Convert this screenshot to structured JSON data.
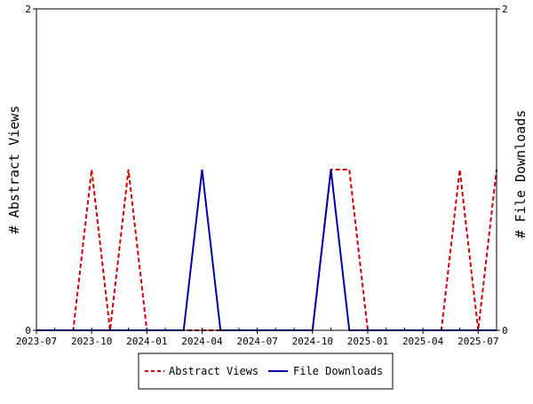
{
  "chart_data": {
    "type": "line",
    "title": "",
    "xlabel": "",
    "ylabel": "# Abstract Views",
    "y2label": "# File Downloads",
    "x": [
      "2023-07",
      "2023-08",
      "2023-09",
      "2023-10",
      "2023-11",
      "2023-12",
      "2024-01",
      "2024-02",
      "2024-03",
      "2024-04",
      "2024-05",
      "2024-06",
      "2024-07",
      "2024-08",
      "2024-09",
      "2024-10",
      "2024-11",
      "2024-12",
      "2025-01",
      "2025-02",
      "2025-03",
      "2025-04",
      "2025-05",
      "2025-06",
      "2025-07",
      "2025-08"
    ],
    "x_tick_labels": [
      "2023-07",
      "2023-10",
      "2024-01",
      "2024-04",
      "2024-07",
      "2024-10",
      "2025-01",
      "2025-04",
      "2025-07"
    ],
    "ylim": [
      0,
      2
    ],
    "y_tick_labels": [
      "0",
      "2"
    ],
    "y2lim": [
      0,
      2
    ],
    "y2_tick_labels": [
      "0",
      "2"
    ],
    "series": [
      {
        "name": "Abstract Views",
        "axis": "left",
        "color": "#cc0000",
        "style": "dashed",
        "values": [
          0,
          0,
          0,
          1,
          0,
          1,
          0,
          0,
          0,
          0,
          0,
          0,
          0,
          0,
          0,
          0,
          1,
          1,
          0,
          0,
          0,
          0,
          0,
          1,
          0,
          1
        ]
      },
      {
        "name": "File Downloads",
        "axis": "right",
        "color": "#0000aa",
        "style": "solid",
        "values": [
          0,
          0,
          0,
          0,
          0,
          0,
          0,
          0,
          0,
          1,
          0,
          0,
          0,
          0,
          0,
          0,
          1,
          0,
          0,
          0,
          0,
          0,
          0,
          0,
          0,
          0
        ]
      }
    ],
    "legend_position": "bottom",
    "grid": false
  }
}
